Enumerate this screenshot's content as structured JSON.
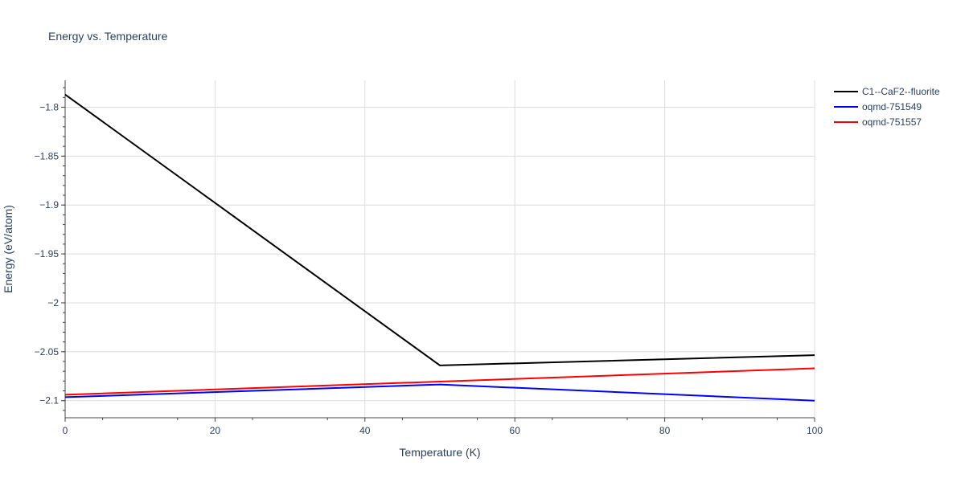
{
  "chart_data": {
    "type": "line",
    "title": "Energy vs. Temperature",
    "xlabel": "Temperature (K)",
    "ylabel": "Energy (eV/atom)",
    "xlim": [
      0,
      100
    ],
    "ylim": [
      -2.1175,
      -1.7725
    ],
    "x_ticks": [
      0,
      20,
      40,
      60,
      80,
      100
    ],
    "x_tick_labels": [
      "0",
      "20",
      "40",
      "60",
      "80",
      "100"
    ],
    "y_ticks": [
      -1.8,
      -1.85,
      -1.9,
      -1.95,
      -2.0,
      -2.05,
      -2.1
    ],
    "y_tick_labels": [
      "−1.8",
      "−1.85",
      "−1.9",
      "−1.95",
      "−2",
      "−2.05",
      "−2.1"
    ],
    "grid": true,
    "legend_position": "top-right",
    "series": [
      {
        "name": "C1--CaF2--fluorite",
        "color": "#000000",
        "x": [
          0,
          50,
          100
        ],
        "y": [
          -1.787,
          -2.064,
          -2.0535
        ]
      },
      {
        "name": "oqmd-751549",
        "color": "#0000ff",
        "x": [
          0,
          50,
          100
        ],
        "y": [
          -2.0965,
          -2.0835,
          -2.1
        ]
      },
      {
        "name": "oqmd-751557",
        "color": "#ff0000",
        "x": [
          0,
          50,
          100
        ],
        "y": [
          -2.094,
          -2.0805,
          -2.067
        ]
      }
    ]
  }
}
